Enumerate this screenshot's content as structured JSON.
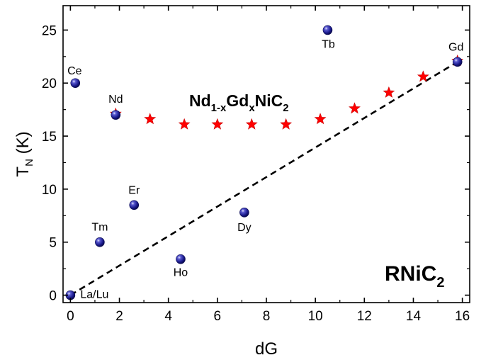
{
  "chart_data": {
    "type": "scatter",
    "xlabel": "dG",
    "ylabel": "T",
    "ylabel_sub": "N",
    "ylabel_unit": " (K)",
    "xlim": [
      -0.3,
      16.3
    ],
    "ylim": [
      -0.7,
      27.3
    ],
    "xticks": [
      0,
      2,
      4,
      6,
      8,
      10,
      12,
      14,
      16
    ],
    "yticks": [
      0,
      5,
      10,
      15,
      20,
      25
    ],
    "series": [
      {
        "label": "RNiC",
        "label_sub": "2",
        "marker": "sphere",
        "color": "#1a1a8c",
        "points": [
          {
            "x": 0.0,
            "y": 0.0,
            "label": "La/Lu"
          },
          {
            "x": 0.2,
            "y": 20.0,
            "label": "Ce"
          },
          {
            "x": 1.85,
            "y": 17.0,
            "label": "Nd"
          },
          {
            "x": 1.2,
            "y": 5.0,
            "label": "Tm"
          },
          {
            "x": 2.6,
            "y": 8.5,
            "label": "Er"
          },
          {
            "x": 4.5,
            "y": 3.4,
            "label": "Ho"
          },
          {
            "x": 7.1,
            "y": 7.8,
            "label": "Dy"
          },
          {
            "x": 10.5,
            "y": 25.0,
            "label": "Tb"
          },
          {
            "x": 15.8,
            "y": 22.0,
            "label": "Gd"
          }
        ]
      },
      {
        "label_parts": [
          "Nd",
          "1-x",
          "Gd",
          "x",
          "NiC",
          "2"
        ],
        "marker": "star",
        "color": "#ff0000",
        "points": [
          {
            "x": 1.85,
            "y": 17.1
          },
          {
            "x": 3.25,
            "y": 16.6
          },
          {
            "x": 4.65,
            "y": 16.1
          },
          {
            "x": 6.0,
            "y": 16.1
          },
          {
            "x": 7.4,
            "y": 16.1
          },
          {
            "x": 8.8,
            "y": 16.1
          },
          {
            "x": 10.2,
            "y": 16.6
          },
          {
            "x": 11.6,
            "y": 17.6
          },
          {
            "x": 13.0,
            "y": 19.1
          },
          {
            "x": 14.4,
            "y": 20.6
          },
          {
            "x": 15.8,
            "y": 22.1
          }
        ]
      }
    ],
    "fit_line": {
      "style": "dashed",
      "color": "#000000",
      "from": [
        0,
        0
      ],
      "to": [
        15.8,
        22.0
      ]
    }
  }
}
